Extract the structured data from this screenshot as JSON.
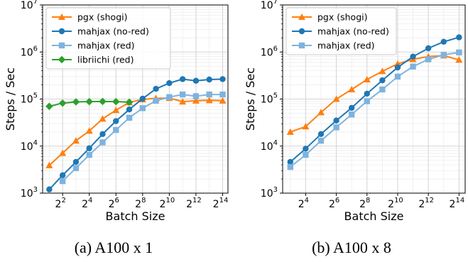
{
  "chart_data": [
    {
      "type": "line",
      "caption": "(a) A100 x 1",
      "xlabel": "Batch Size",
      "ylabel": "Steps / Sec",
      "xscale": "log2",
      "yscale": "log10",
      "xlim_exp": [
        0.5,
        14.4
      ],
      "ylim_exp": [
        3,
        7
      ],
      "xticks_exp": [
        2,
        4,
        6,
        8,
        10,
        12,
        14
      ],
      "yticks_exp": [
        3,
        4,
        5,
        6,
        7
      ],
      "tick_base_x": "2",
      "tick_base_y": "10",
      "grid": true,
      "legend_loc": "upper left",
      "series": [
        {
          "name": "pgx (shogi)",
          "color": "#ff7f0e",
          "marker": "triangle",
          "x_exp": [
            1,
            2,
            3,
            4,
            5,
            6,
            7,
            8,
            9,
            10,
            11,
            12,
            13,
            14
          ],
          "y": [
            3900,
            7100,
            13000,
            21000,
            38000,
            58000,
            85000,
            98000,
            104000,
            105000,
            88000,
            92000,
            94000,
            92000
          ]
        },
        {
          "name": "mahjax (no-red)",
          "color": "#1f77b4",
          "marker": "circle",
          "x_exp": [
            1,
            2,
            3,
            4,
            5,
            6,
            7,
            8,
            9,
            10,
            11,
            12,
            13,
            14
          ],
          "y": [
            1200,
            2400,
            4600,
            9000,
            18000,
            34000,
            60000,
            102000,
            165000,
            218000,
            265000,
            245000,
            260000,
            265000
          ]
        },
        {
          "name": "mahjax (red)",
          "color": "#7eb3de",
          "marker": "square",
          "x_exp": [
            2,
            3,
            4,
            5,
            6,
            7,
            8,
            9,
            10,
            11,
            12,
            13,
            14
          ],
          "y": [
            1800,
            3400,
            6500,
            12000,
            22000,
            40000,
            64000,
            92000,
            110000,
            125000,
            115000,
            125000,
            125000
          ]
        },
        {
          "name": "libriichi (red)",
          "color": "#2ca02c",
          "marker": "diamond",
          "x_exp": [
            1,
            2,
            3,
            4,
            5,
            6,
            7
          ],
          "y": [
            70000,
            82000,
            87000,
            88000,
            89000,
            88000,
            86000
          ]
        }
      ]
    },
    {
      "type": "line",
      "caption": "(b) A100 x 8",
      "xlabel": "Batch Size",
      "ylabel": "Steps / Sec",
      "xscale": "log2",
      "yscale": "log10",
      "xlim_exp": [
        2.5,
        14.4
      ],
      "ylim_exp": [
        3,
        7
      ],
      "xticks_exp": [
        4,
        6,
        8,
        10,
        12,
        14
      ],
      "yticks_exp": [
        3,
        4,
        5,
        6,
        7
      ],
      "tick_base_x": "2",
      "tick_base_y": "10",
      "grid": true,
      "legend_loc": "upper left",
      "series": [
        {
          "name": "pgx (shogi)",
          "color": "#ff7f0e",
          "marker": "triangle",
          "x_exp": [
            3,
            4,
            5,
            6,
            7,
            8,
            9,
            10,
            11,
            12,
            13,
            14
          ],
          "y": [
            20000,
            26000,
            52000,
            100000,
            160000,
            260000,
            390000,
            560000,
            700000,
            800000,
            840000,
            680000
          ]
        },
        {
          "name": "mahjax (no-red)",
          "color": "#1f77b4",
          "marker": "circle",
          "x_exp": [
            3,
            4,
            5,
            6,
            7,
            8,
            9,
            10,
            11,
            12,
            13,
            14
          ],
          "y": [
            4600,
            8800,
            18000,
            35000,
            65000,
            130000,
            250000,
            470000,
            800000,
            1200000,
            1650000,
            2050000
          ]
        },
        {
          "name": "mahjax (red)",
          "color": "#7eb3de",
          "marker": "square",
          "x_exp": [
            3,
            4,
            5,
            6,
            7,
            8,
            9,
            10,
            11,
            12,
            13,
            14
          ],
          "y": [
            3600,
            6500,
            13000,
            25000,
            47000,
            90000,
            160000,
            300000,
            490000,
            700000,
            870000,
            980000
          ]
        }
      ]
    }
  ]
}
